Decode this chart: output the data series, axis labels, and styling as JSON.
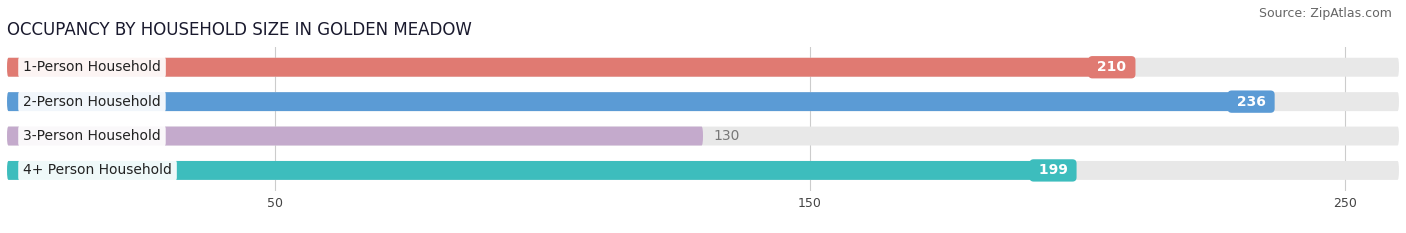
{
  "title": "OCCUPANCY BY HOUSEHOLD SIZE IN GOLDEN MEADOW",
  "source": "Source: ZipAtlas.com",
  "categories": [
    "1-Person Household",
    "2-Person Household",
    "3-Person Household",
    "4+ Person Household"
  ],
  "values": [
    210,
    236,
    130,
    199
  ],
  "bar_colors": [
    "#E07A72",
    "#5B9BD5",
    "#C4AACC",
    "#3DBDBD"
  ],
  "bar_bg_colors": [
    "#E8E8E8",
    "#E8E8E8",
    "#E8E8E8",
    "#E8E8E8"
  ],
  "value_label_colors": [
    "white",
    "white",
    "#777777",
    "white"
  ],
  "xlim": [
    0,
    260
  ],
  "xticks": [
    50,
    150,
    250
  ],
  "title_fontsize": 12,
  "source_fontsize": 9,
  "label_fontsize": 10,
  "value_fontsize": 10,
  "bar_height": 0.55,
  "background_color": "#ffffff",
  "grid_color": "#cccccc"
}
